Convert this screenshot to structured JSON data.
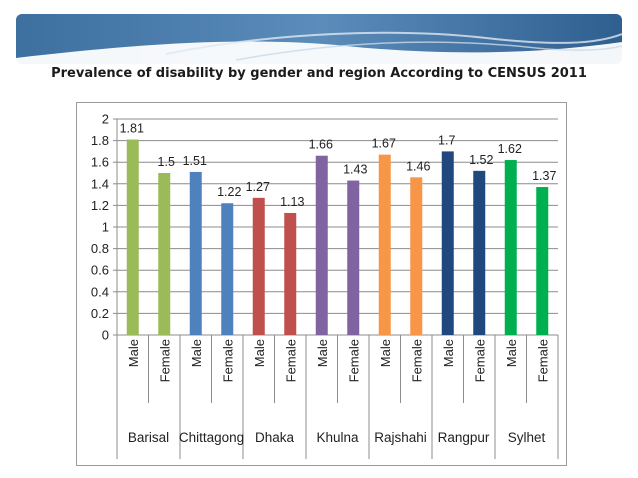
{
  "slide": {
    "title": "Prevalence of disability by gender and region According to  CENSUS 2011"
  },
  "chart_data": {
    "type": "bar",
    "title": "Prevalence of disability by gender and region According to  CENSUS 2011",
    "xlabel": "",
    "ylabel": "",
    "ylim": [
      0,
      2
    ],
    "yticks": [
      0,
      0.2,
      0.4,
      0.6,
      0.8,
      1,
      1.2,
      1.4,
      1.6,
      1.8,
      2
    ],
    "ytick_labels": [
      "0",
      "0.2",
      "0.4",
      "0.6",
      "0.8",
      "1",
      "1.2",
      "1.4",
      "1.6",
      "1.8",
      "2"
    ],
    "grid": true,
    "groups": [
      "Barisal",
      "Chittagong",
      "Dhaka",
      "Khulna",
      "Rajshahi",
      "Rangpur",
      "Sylhet"
    ],
    "categories": [
      "Male",
      "Female",
      "Male",
      "Female",
      "Male",
      "Female",
      "Male",
      "Female",
      "Male",
      "Female",
      "Male",
      "Female",
      "Male",
      "Female"
    ],
    "values": [
      1.81,
      1.5,
      1.51,
      1.22,
      1.27,
      1.13,
      1.66,
      1.43,
      1.67,
      1.46,
      1.7,
      1.52,
      1.62,
      1.37
    ],
    "value_labels": [
      "1.81",
      "1.5",
      "1.51",
      "1.22",
      "1.27",
      "1.13",
      "1.66",
      "1.43",
      "1.67",
      "1.46",
      "1.7",
      "1.52",
      "1.62",
      "1.37"
    ],
    "group_colors": [
      "#9bbb59",
      "#4f81bd",
      "#c0504d",
      "#8064a2",
      "#f79646",
      "#1f497d",
      "#00b050"
    ]
  }
}
